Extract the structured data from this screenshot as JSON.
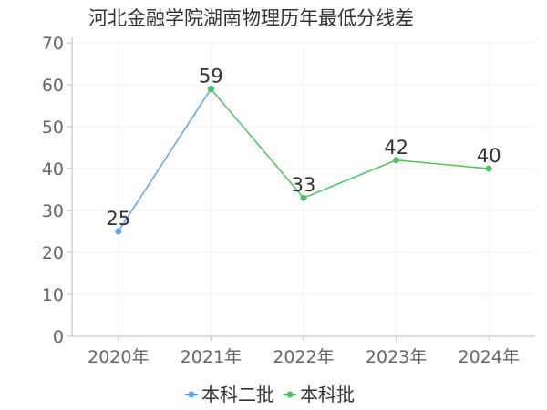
{
  "chart_data": {
    "type": "line",
    "title": "河北金融学院湖南物理历年最低分线差",
    "categories": [
      "2020年",
      "2021年",
      "2022年",
      "2023年",
      "2024年"
    ],
    "ylim": [
      0,
      70
    ],
    "yticks": [
      0,
      10,
      20,
      30,
      40,
      50,
      60,
      70
    ],
    "grid": true,
    "legend_position": "bottom",
    "series": [
      {
        "name": "本科二批",
        "color": "#5aa5f0",
        "values": [
          25,
          59,
          null,
          null,
          null
        ]
      },
      {
        "name": "本科批",
        "color": "#4cc45c",
        "values": [
          null,
          59,
          33,
          42,
          40
        ]
      }
    ],
    "data_labels": [
      {
        "category": "2020年",
        "value": 25,
        "text": "25"
      },
      {
        "category": "2021年",
        "value": 59,
        "text": "59"
      },
      {
        "category": "2022年",
        "value": 33,
        "text": "33"
      },
      {
        "category": "2023年",
        "value": 42,
        "text": "42"
      },
      {
        "category": "2024年",
        "value": 40,
        "text": "40"
      }
    ]
  }
}
